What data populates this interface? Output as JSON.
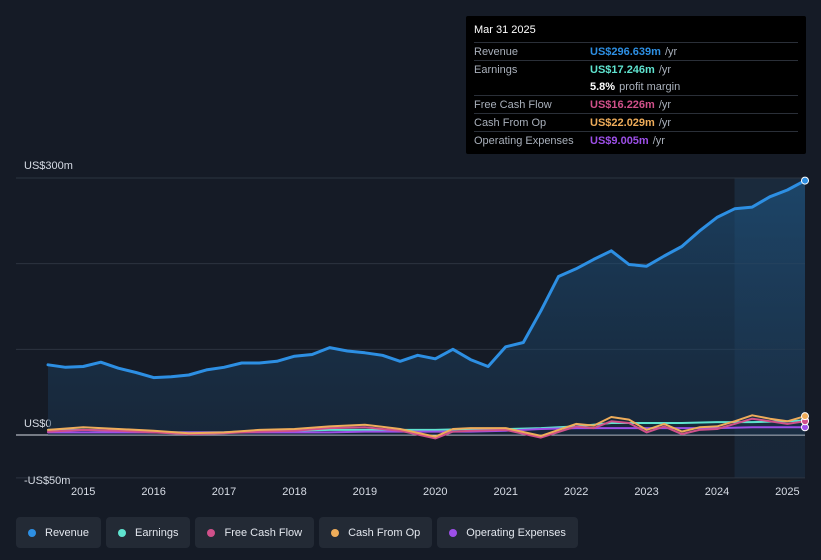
{
  "tooltip": {
    "date": "Mar 31 2025",
    "rows": [
      {
        "label": "Revenue",
        "value": "US$296.639m",
        "unit": "/yr",
        "color": "#2d8fe3"
      },
      {
        "label": "Earnings",
        "value": "US$17.246m",
        "unit": "/yr",
        "color": "#5fe3cf"
      },
      {
        "label": "",
        "value": "5.8%",
        "unit": "profit margin",
        "color": "#ffffff"
      },
      {
        "label": "Free Cash Flow",
        "value": "US$16.226m",
        "unit": "/yr",
        "color": "#d0508a"
      },
      {
        "label": "Cash From Op",
        "value": "US$22.029m",
        "unit": "/yr",
        "color": "#eeac5a"
      },
      {
        "label": "Operating Expenses",
        "value": "US$9.005m",
        "unit": "/yr",
        "color": "#9d4fe8"
      }
    ]
  },
  "legend": [
    {
      "label": "Revenue",
      "color": "#2d8fe3"
    },
    {
      "label": "Earnings",
      "color": "#5fe3cf"
    },
    {
      "label": "Free Cash Flow",
      "color": "#d0508a"
    },
    {
      "label": "Cash From Op",
      "color": "#eeac5a"
    },
    {
      "label": "Operating Expenses",
      "color": "#9d4fe8"
    }
  ],
  "chart_data": {
    "type": "area",
    "title": "",
    "xlabel": "",
    "ylabel": "",
    "ylim": [
      -50,
      300
    ],
    "xlim": [
      2014.5,
      2025.25
    ],
    "y_labels": [
      {
        "value": 300,
        "text": "US$300m"
      },
      {
        "value": 0,
        "text": "US$0"
      },
      {
        "value": -50,
        "text": "-US$50m"
      }
    ],
    "x_ticks": [
      {
        "value": 2015,
        "text": "2015"
      },
      {
        "value": 2016,
        "text": "2016"
      },
      {
        "value": 2017,
        "text": "2017"
      },
      {
        "value": 2018,
        "text": "2018"
      },
      {
        "value": 2019,
        "text": "2019"
      },
      {
        "value": 2020,
        "text": "2020"
      },
      {
        "value": 2021,
        "text": "2021"
      },
      {
        "value": 2022,
        "text": "2022"
      },
      {
        "value": 2023,
        "text": "2023"
      },
      {
        "value": 2024,
        "text": "2024"
      },
      {
        "value": 2025,
        "text": "2025"
      }
    ],
    "gridlines": [
      300,
      200,
      100,
      0,
      -50
    ],
    "forecast_start": 2024.25,
    "series": [
      {
        "name": "Revenue",
        "color": "#2d8fe3",
        "fill": true,
        "width": 3,
        "points": [
          [
            2014.5,
            82
          ],
          [
            2014.75,
            79
          ],
          [
            2015.0,
            80
          ],
          [
            2015.25,
            85
          ],
          [
            2015.5,
            78
          ],
          [
            2015.75,
            73
          ],
          [
            2016.0,
            67
          ],
          [
            2016.25,
            68
          ],
          [
            2016.5,
            70
          ],
          [
            2016.75,
            76
          ],
          [
            2017.0,
            79
          ],
          [
            2017.25,
            84
          ],
          [
            2017.5,
            84
          ],
          [
            2017.75,
            86
          ],
          [
            2018.0,
            92
          ],
          [
            2018.25,
            94
          ],
          [
            2018.5,
            102
          ],
          [
            2018.75,
            98
          ],
          [
            2019.0,
            96
          ],
          [
            2019.25,
            93
          ],
          [
            2019.5,
            86
          ],
          [
            2019.75,
            93
          ],
          [
            2020.0,
            89
          ],
          [
            2020.25,
            100
          ],
          [
            2020.5,
            88
          ],
          [
            2020.75,
            80
          ],
          [
            2021.0,
            103
          ],
          [
            2021.25,
            108
          ],
          [
            2021.5,
            145
          ],
          [
            2021.75,
            185
          ],
          [
            2022.0,
            194
          ],
          [
            2022.25,
            205
          ],
          [
            2022.5,
            215
          ],
          [
            2022.75,
            199
          ],
          [
            2023.0,
            197
          ],
          [
            2023.25,
            209
          ],
          [
            2023.5,
            220
          ],
          [
            2023.75,
            238
          ],
          [
            2024.0,
            254
          ],
          [
            2024.25,
            264
          ],
          [
            2024.5,
            266
          ],
          [
            2024.75,
            278
          ],
          [
            2025.0,
            286
          ],
          [
            2025.25,
            297
          ]
        ]
      },
      {
        "name": "Earnings",
        "color": "#5fe3cf",
        "fill": false,
        "width": 2,
        "points": [
          [
            2014.5,
            6
          ],
          [
            2015.0,
            6
          ],
          [
            2015.5,
            5
          ],
          [
            2016.0,
            3
          ],
          [
            2016.5,
            3
          ],
          [
            2017.0,
            3
          ],
          [
            2017.5,
            5
          ],
          [
            2018.0,
            5
          ],
          [
            2018.5,
            6
          ],
          [
            2019.0,
            6
          ],
          [
            2019.5,
            6
          ],
          [
            2020.0,
            6
          ],
          [
            2020.5,
            7
          ],
          [
            2021.0,
            7
          ],
          [
            2021.5,
            8
          ],
          [
            2022.0,
            10
          ],
          [
            2022.5,
            14
          ],
          [
            2023.0,
            14
          ],
          [
            2023.5,
            14
          ],
          [
            2024.0,
            15
          ],
          [
            2024.5,
            15
          ],
          [
            2025.0,
            16
          ],
          [
            2025.25,
            17
          ]
        ]
      },
      {
        "name": "Free Cash Flow",
        "color": "#d0508a",
        "fill": false,
        "width": 2,
        "points": [
          [
            2014.5,
            4
          ],
          [
            2015.0,
            6
          ],
          [
            2015.5,
            5
          ],
          [
            2016.0,
            3
          ],
          [
            2016.5,
            1
          ],
          [
            2017.0,
            2
          ],
          [
            2017.5,
            4
          ],
          [
            2018.0,
            5
          ],
          [
            2018.5,
            8
          ],
          [
            2019.0,
            9
          ],
          [
            2019.5,
            5
          ],
          [
            2020.0,
            -4
          ],
          [
            2020.25,
            4
          ],
          [
            2020.5,
            5
          ],
          [
            2021.0,
            6
          ],
          [
            2021.5,
            -3
          ],
          [
            2022.0,
            10
          ],
          [
            2022.25,
            8
          ],
          [
            2022.5,
            16
          ],
          [
            2022.75,
            14
          ],
          [
            2023.0,
            3
          ],
          [
            2023.25,
            10
          ],
          [
            2023.5,
            1
          ],
          [
            2023.75,
            6
          ],
          [
            2024.0,
            7
          ],
          [
            2024.25,
            13
          ],
          [
            2024.5,
            19
          ],
          [
            2024.75,
            16
          ],
          [
            2025.0,
            13
          ],
          [
            2025.25,
            16
          ]
        ]
      },
      {
        "name": "Cash From Op",
        "color": "#eeac5a",
        "fill": false,
        "width": 2,
        "points": [
          [
            2014.5,
            6
          ],
          [
            2015.0,
            9
          ],
          [
            2015.5,
            7
          ],
          [
            2016.0,
            5
          ],
          [
            2016.5,
            2
          ],
          [
            2017.0,
            3
          ],
          [
            2017.5,
            6
          ],
          [
            2018.0,
            7
          ],
          [
            2018.5,
            10
          ],
          [
            2019.0,
            12
          ],
          [
            2019.5,
            7
          ],
          [
            2020.0,
            -2
          ],
          [
            2020.25,
            7
          ],
          [
            2020.5,
            8
          ],
          [
            2021.0,
            8
          ],
          [
            2021.5,
            -1
          ],
          [
            2022.0,
            13
          ],
          [
            2022.25,
            11
          ],
          [
            2022.5,
            21
          ],
          [
            2022.75,
            18
          ],
          [
            2023.0,
            6
          ],
          [
            2023.25,
            13
          ],
          [
            2023.5,
            4
          ],
          [
            2023.75,
            9
          ],
          [
            2024.0,
            10
          ],
          [
            2024.25,
            16
          ],
          [
            2024.5,
            23
          ],
          [
            2024.75,
            19
          ],
          [
            2025.0,
            16
          ],
          [
            2025.25,
            22
          ]
        ]
      },
      {
        "name": "Operating Expenses",
        "color": "#9d4fe8",
        "fill": false,
        "width": 2,
        "points": [
          [
            2014.5,
            3
          ],
          [
            2015.0,
            3
          ],
          [
            2015.5,
            3
          ],
          [
            2016.0,
            3
          ],
          [
            2016.5,
            3
          ],
          [
            2017.0,
            3
          ],
          [
            2017.5,
            3
          ],
          [
            2018.0,
            3
          ],
          [
            2018.5,
            3
          ],
          [
            2019.0,
            4
          ],
          [
            2019.5,
            4
          ],
          [
            2020.0,
            4
          ],
          [
            2020.5,
            4
          ],
          [
            2021.0,
            5
          ],
          [
            2021.5,
            7
          ],
          [
            2022.0,
            8
          ],
          [
            2022.5,
            8
          ],
          [
            2023.0,
            8
          ],
          [
            2023.5,
            8
          ],
          [
            2024.0,
            8
          ],
          [
            2024.5,
            9
          ],
          [
            2025.0,
            9
          ],
          [
            2025.25,
            9
          ]
        ]
      }
    ]
  }
}
